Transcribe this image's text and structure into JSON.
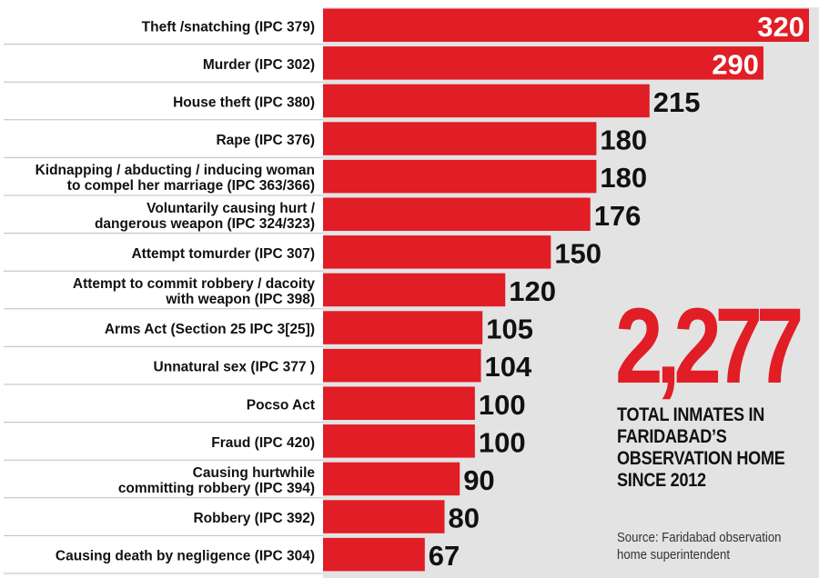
{
  "chart_data": {
    "type": "bar",
    "orientation": "horizontal",
    "categories": [
      [
        "Theft /snatching (IPC 379)"
      ],
      [
        "Murder (IPC 302)"
      ],
      [
        "House theft (IPC 380)"
      ],
      [
        "Rape (IPC 376)"
      ],
      [
        "Kidnapping / abducting / inducing woman",
        "to compel her marriage (IPC 363/366)"
      ],
      [
        "Voluntarily causing hurt /",
        "dangerous weapon (IPC 324/323)"
      ],
      [
        "Attempt tomurder (IPC 307)"
      ],
      [
        "Attempt to commit robbery / dacoity",
        "with weapon (IPC 398)"
      ],
      [
        "Arms Act (Section 25 IPC 3[25])"
      ],
      [
        "Unnatural sex (IPC 377 )"
      ],
      [
        "Pocso Act"
      ],
      [
        "Fraud (IPC 420)"
      ],
      [
        "Causing hurtwhile",
        "committing robbery (IPC 394)"
      ],
      [
        "Robbery (IPC 392)"
      ],
      [
        "Causing death by negligence (IPC 304)"
      ]
    ],
    "values": [
      320,
      290,
      215,
      180,
      180,
      176,
      150,
      120,
      105,
      104,
      100,
      100,
      90,
      80,
      67
    ],
    "value_labels": [
      "320",
      "290",
      "215",
      "180",
      "180",
      "176",
      "150",
      "120",
      "105",
      "104",
      "100",
      "100",
      "90",
      "80",
      "67"
    ],
    "xlim": [
      0,
      320
    ],
    "legend": "none",
    "grid": false,
    "bar_color": "#e11d26",
    "label_inside_color": "#ffffff",
    "label_outside_color": "#111111",
    "row_separator_color": "#bdbdbd"
  },
  "callout": {
    "total": "2,277",
    "caption": "TOTAL INMATES IN FARIDABAD’S OBSERVATION HOME SINCE 2012"
  },
  "source": "Source: Faridabad observation home superintendent"
}
